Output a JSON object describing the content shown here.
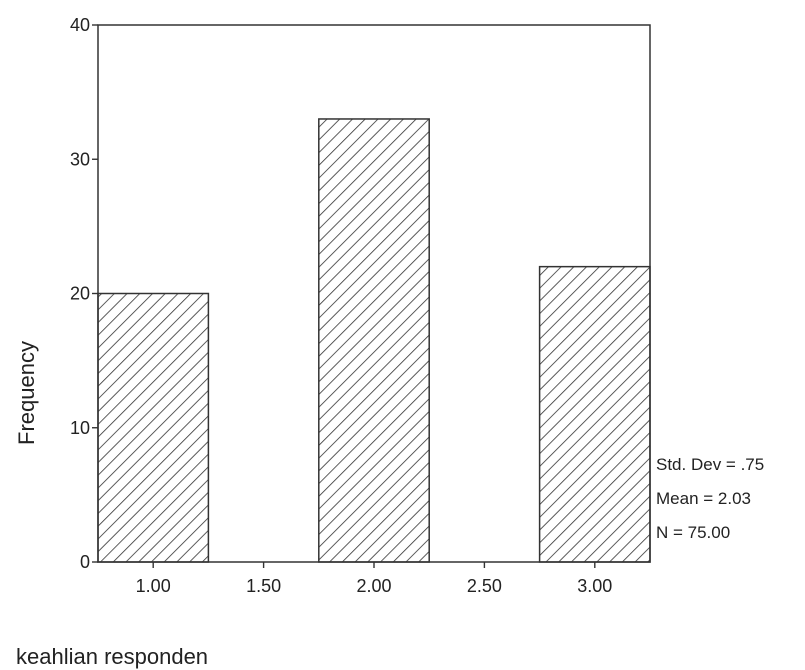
{
  "chart_data": {
    "type": "histogram",
    "xlabel": "keahlian responden",
    "ylabel": "Frequency",
    "x_ticks": [
      "1.00",
      "1.50",
      "2.00",
      "2.50",
      "3.00"
    ],
    "x_tick_values": [
      1.0,
      1.5,
      2.0,
      2.5,
      3.0
    ],
    "xlim": [
      0.75,
      3.25
    ],
    "y_ticks": [
      "0",
      "10",
      "20",
      "30",
      "40"
    ],
    "y_tick_values": [
      0,
      10,
      20,
      30,
      40
    ],
    "ylim": [
      0,
      40
    ],
    "bins": [
      {
        "center": 1.0,
        "width": 0.5,
        "value": 20
      },
      {
        "center": 2.0,
        "width": 0.5,
        "value": 33
      },
      {
        "center": 3.0,
        "width": 0.5,
        "value": 22
      }
    ],
    "fill": "diagonal-hatch",
    "grid": false,
    "stats": [
      "Std. Dev = .75",
      "Mean = 2.03",
      "N = 75.00"
    ],
    "colors": {
      "frame": "#333333",
      "hatch": "#333333",
      "text": "#222222"
    }
  }
}
